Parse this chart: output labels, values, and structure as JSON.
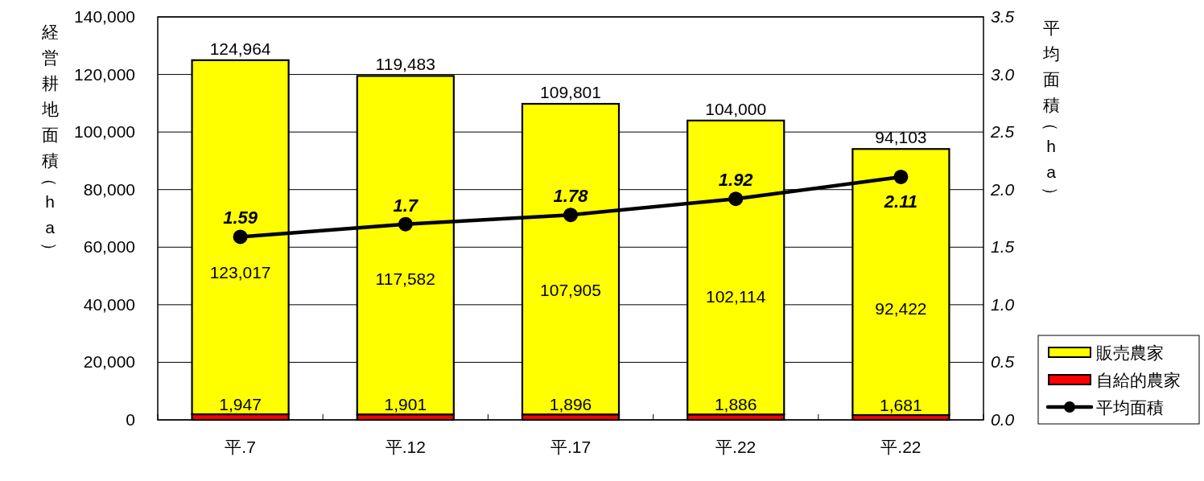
{
  "chart_data": {
    "type": "bar",
    "stacked": true,
    "categories": [
      "平.7",
      "平.12",
      "平.17",
      "平.22",
      "平.22"
    ],
    "series": [
      {
        "name": "自給的農家",
        "color": "#ff0000",
        "values": [
          1947,
          1901,
          1896,
          1886,
          1681
        ],
        "value_labels": [
          "1,947",
          "1,901",
          "1,896",
          "1,886",
          "1,681"
        ]
      },
      {
        "name": "販売農家",
        "color": "#ffff00",
        "values": [
          123017,
          117582,
          107905,
          102114,
          92422
        ],
        "value_labels": [
          "123,017",
          "117,582",
          "107,905",
          "102,114",
          "92,422"
        ]
      },
      {
        "name": "平均面積",
        "type": "line",
        "axis": "y2",
        "color": "#000000",
        "values": [
          1.59,
          1.7,
          1.78,
          1.92,
          2.11
        ],
        "value_labels": [
          "1.59",
          "1.7",
          "1.78",
          "1.92",
          "2.11"
        ]
      }
    ],
    "totals": [
      "124,964",
      "119,483",
      "109,801",
      "104,000",
      "94,103"
    ],
    "ylabel": "経営耕地面積（ha）",
    "y2label": "平均面積（ha）",
    "ylim": [
      0,
      140000
    ],
    "yticks": [
      {
        "value": 0,
        "label": "0"
      },
      {
        "value": 20000,
        "label": "20,000"
      },
      {
        "value": 40000,
        "label": "40,000"
      },
      {
        "value": 60000,
        "label": "60,000"
      },
      {
        "value": 80000,
        "label": "80,000"
      },
      {
        "value": 100000,
        "label": "100,000"
      },
      {
        "value": 120000,
        "label": "120,000"
      },
      {
        "value": 140000,
        "label": "140,000"
      }
    ],
    "y2lim": [
      0,
      3.5
    ],
    "y2ticks": [
      {
        "value": 0,
        "label": "0.0"
      },
      {
        "value": 0.5,
        "label": "0.5"
      },
      {
        "value": 1,
        "label": "1.0"
      },
      {
        "value": 1.5,
        "label": "1.5"
      },
      {
        "value": 2,
        "label": "2.0"
      },
      {
        "value": 2.5,
        "label": "2.5"
      },
      {
        "value": 3,
        "label": "3.0"
      },
      {
        "value": 3.5,
        "label": "3.5"
      }
    ],
    "grid": "y",
    "legend": "right",
    "marker": "circle",
    "line_style": "solid"
  }
}
